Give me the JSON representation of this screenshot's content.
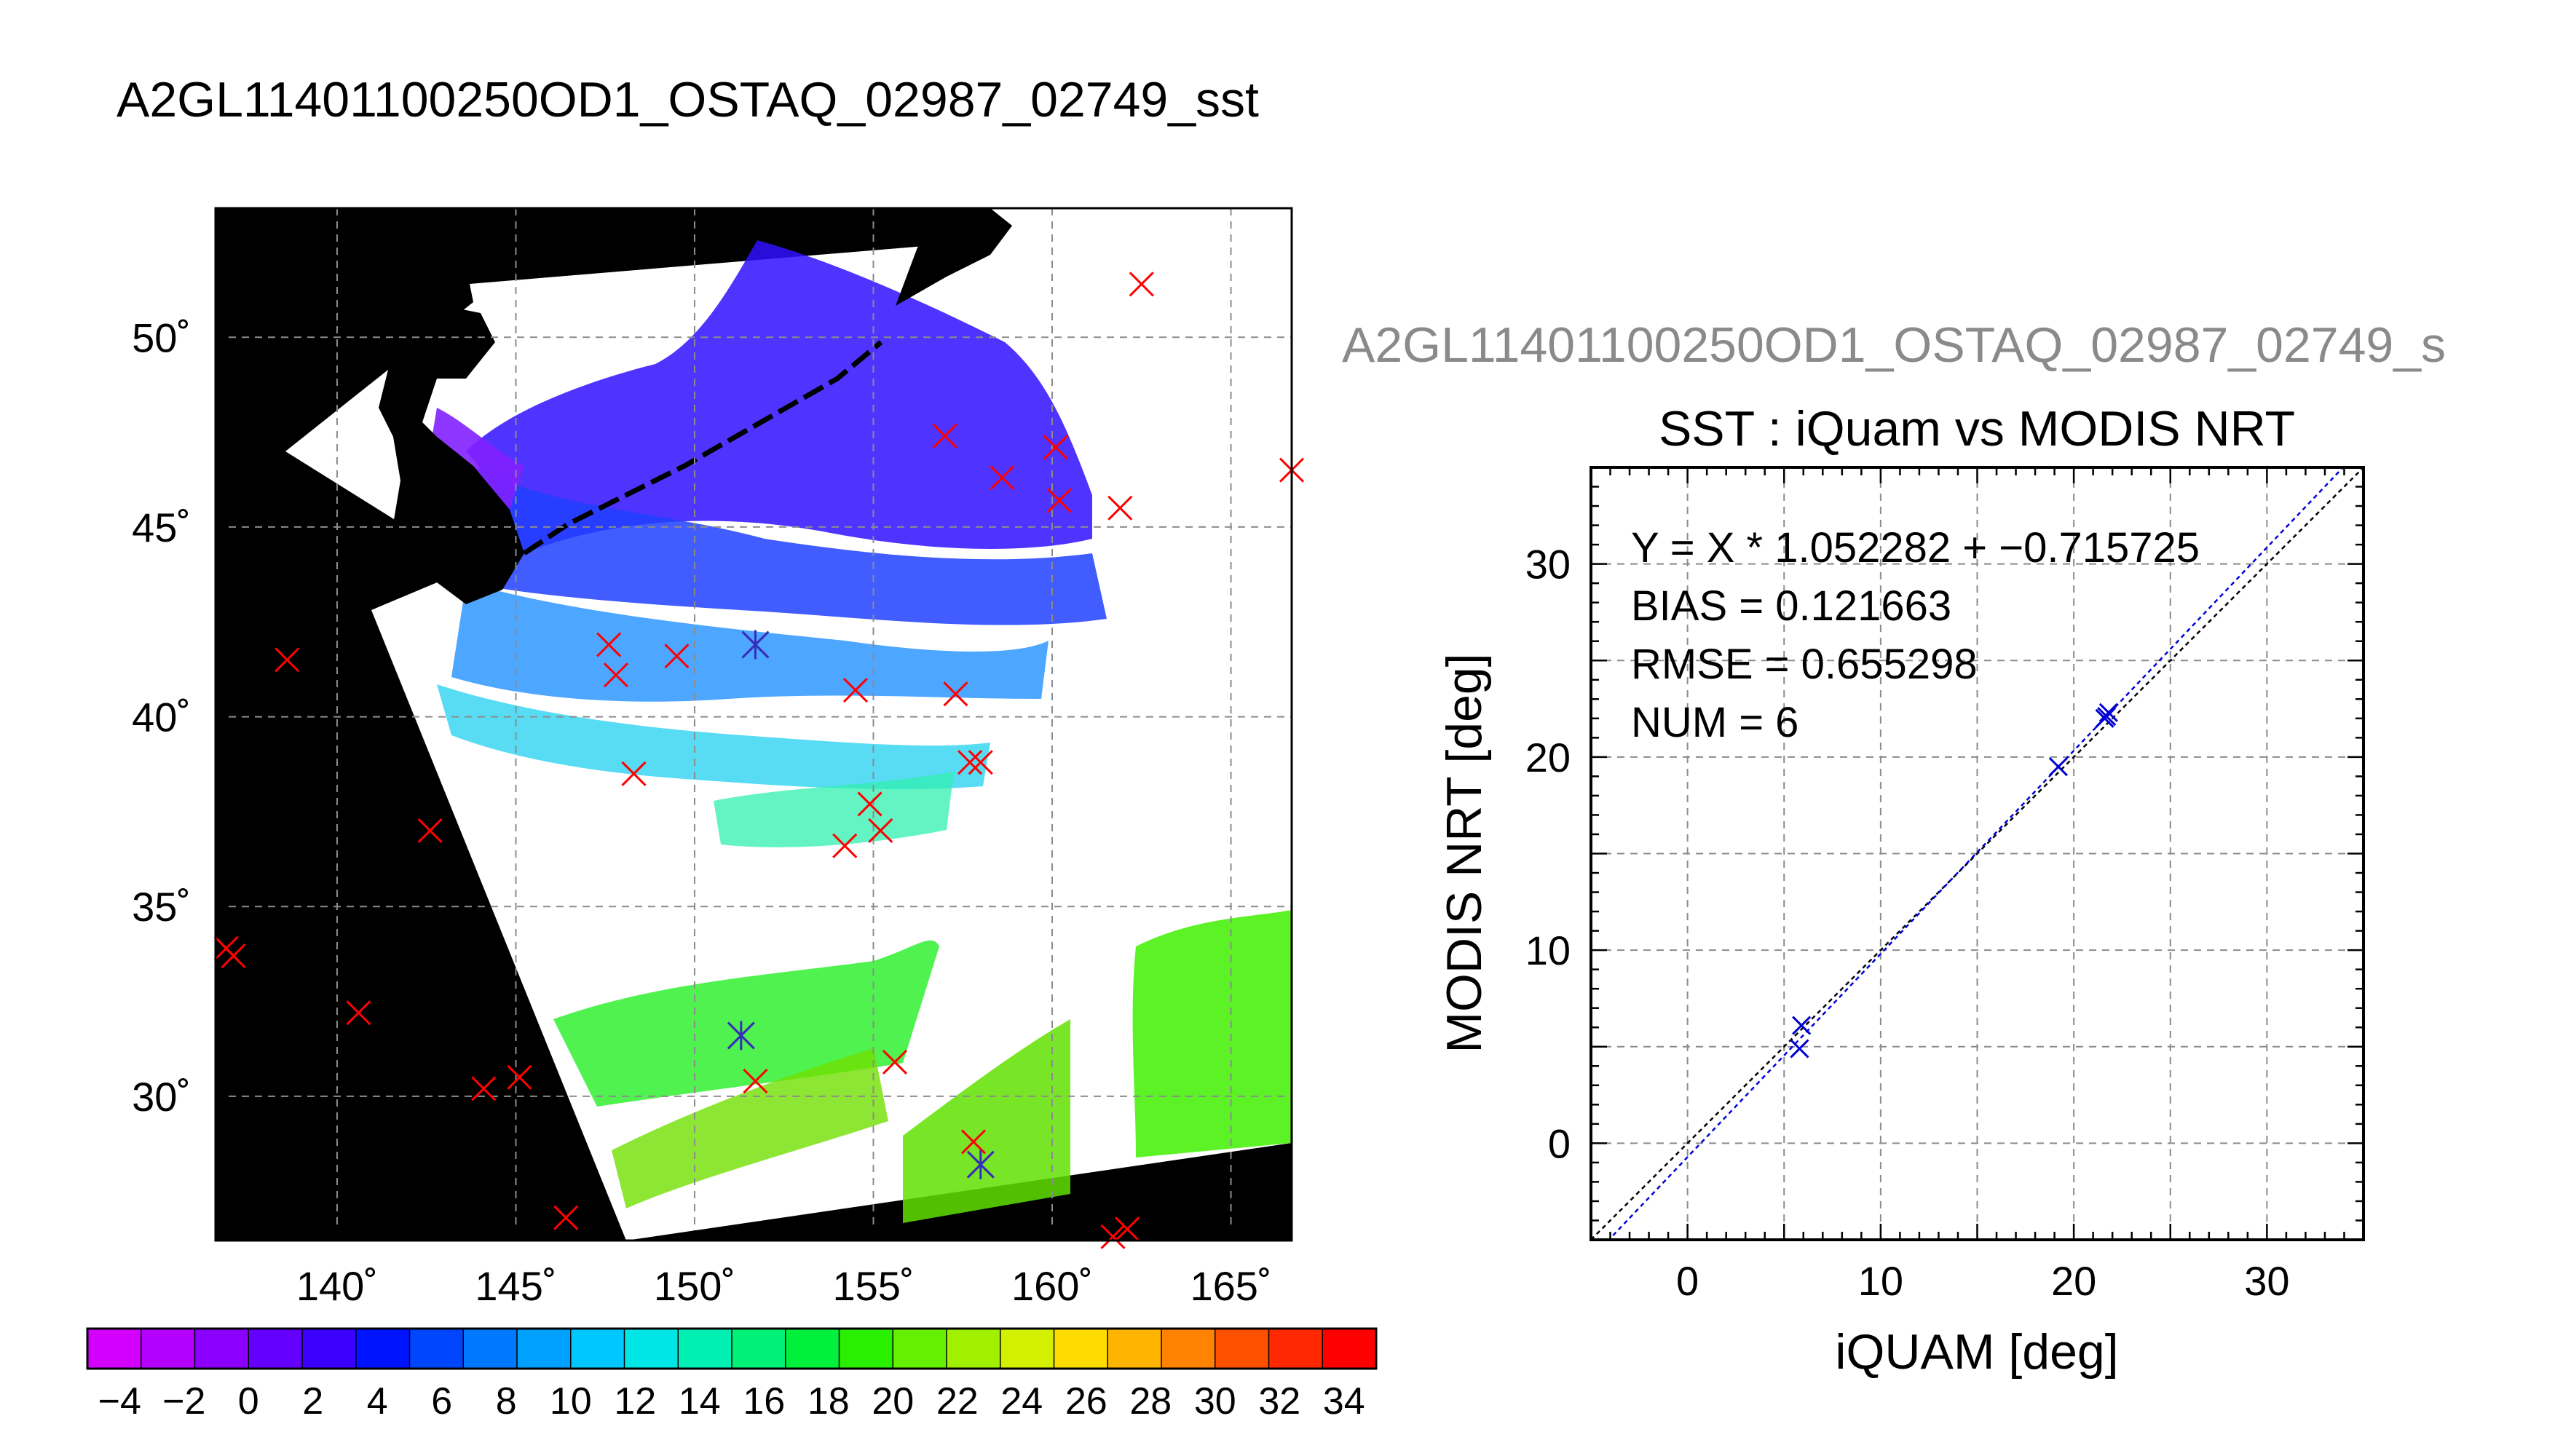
{
  "header": {
    "title": "A2GL11401100250OD1_OSTAQ_02987_02749_sst",
    "subtitle": "A2GL11401100250OD1_OSTAQ_02987_02749_s"
  },
  "chart_data": [
    {
      "type": "map",
      "lon_ticks": [
        140,
        145,
        150,
        155,
        160,
        165
      ],
      "lat_ticks": [
        30,
        35,
        40,
        45,
        50
      ],
      "lon_tick_labels": [
        "140˚",
        "145˚",
        "150˚",
        "155˚",
        "160˚",
        "165˚"
      ],
      "lat_tick_labels": [
        "30˚",
        "35˚",
        "40˚",
        "45˚",
        "50˚"
      ],
      "xlim": [
        136.6,
        166.7
      ],
      "ylim": [
        26.2,
        53.4
      ],
      "grid": true,
      "markers": [
        {
          "lon": 162.5,
          "lat": 51.4
        },
        {
          "lon": 166.7,
          "lat": 46.5
        },
        {
          "lon": 157.0,
          "lat": 47.4
        },
        {
          "lon": 160.1,
          "lat": 47.1
        },
        {
          "lon": 158.6,
          "lat": 46.3
        },
        {
          "lon": 160.2,
          "lat": 45.7
        },
        {
          "lon": 161.9,
          "lat": 45.5
        },
        {
          "lon": 138.6,
          "lat": 41.5
        },
        {
          "lon": 147.6,
          "lat": 41.9
        },
        {
          "lon": 147.8,
          "lat": 41.1
        },
        {
          "lon": 149.5,
          "lat": 41.6
        },
        {
          "lon": 151.7,
          "lat": 41.9
        },
        {
          "lon": 154.5,
          "lat": 40.7
        },
        {
          "lon": 157.3,
          "lat": 40.6
        },
        {
          "lon": 148.3,
          "lat": 38.5
        },
        {
          "lon": 157.7,
          "lat": 38.8
        },
        {
          "lon": 158.0,
          "lat": 38.8
        },
        {
          "lon": 154.9,
          "lat": 37.7
        },
        {
          "lon": 155.2,
          "lat": 37.0
        },
        {
          "lon": 154.2,
          "lat": 36.6
        },
        {
          "lon": 142.6,
          "lat": 37.0
        },
        {
          "lon": 136.9,
          "lat": 33.9
        },
        {
          "lon": 137.1,
          "lat": 33.7
        },
        {
          "lon": 140.6,
          "lat": 32.2
        },
        {
          "lon": 151.3,
          "lat": 31.6
        },
        {
          "lon": 151.7,
          "lat": 30.4
        },
        {
          "lon": 155.6,
          "lat": 30.9
        },
        {
          "lon": 144.1,
          "lat": 30.2
        },
        {
          "lon": 145.1,
          "lat": 30.5
        },
        {
          "lon": 157.8,
          "lat": 28.8
        },
        {
          "lon": 158.0,
          "lat": 28.2
        },
        {
          "lon": 146.4,
          "lat": 26.8
        },
        {
          "lon": 161.7,
          "lat": 26.3
        },
        {
          "lon": 162.1,
          "lat": 26.5
        }
      ],
      "matched_markers": [
        {
          "lon": 151.3,
          "lat": 31.6
        },
        {
          "lon": 158.0,
          "lat": 28.2
        },
        {
          "lon": 151.7,
          "lat": 41.9
        }
      ]
    },
    {
      "type": "colorbar",
      "min": -5,
      "max": 35,
      "step": 2,
      "tick_labels": [
        "−4",
        "−2",
        "0",
        "2",
        "4",
        "6",
        "8",
        "10",
        "12",
        "14",
        "16",
        "18",
        "20",
        "22",
        "24",
        "26",
        "28",
        "30",
        "32",
        "34"
      ],
      "colors": [
        "#d400ff",
        "#b300ff",
        "#8c00ff",
        "#6400ff",
        "#3c00ff",
        "#0014ff",
        "#0046ff",
        "#0078ff",
        "#00a0ff",
        "#00c8ff",
        "#00e6e6",
        "#00f0b4",
        "#00f078",
        "#00f03c",
        "#28f000",
        "#64f000",
        "#a0f000",
        "#d2f000",
        "#ffdc00",
        "#ffb400",
        "#ff8200",
        "#ff5000",
        "#ff2800",
        "#ff0000"
      ]
    },
    {
      "type": "scatter",
      "title": "SST : iQuam vs MODIS NRT",
      "xlabel": "iQUAM [deg]",
      "ylabel": "MODIS NRT [deg]",
      "xlim": [
        -5,
        35
      ],
      "ylim": [
        -5,
        35
      ],
      "xticks": [
        0,
        10,
        20,
        30
      ],
      "yticks": [
        0,
        10,
        20,
        30
      ],
      "grid": true,
      "annotations": [
        "Y = X * 1.052282 + −0.715725",
        "BIAS = 0.121663",
        "RMSE = 0.655298",
        "NUM = 6"
      ],
      "fit": {
        "slope": 1.052282,
        "intercept": -0.715725
      },
      "points": [
        {
          "x": 5.9,
          "y": 6.1
        },
        {
          "x": 5.8,
          "y": 4.9
        },
        {
          "x": 19.2,
          "y": 19.5
        },
        {
          "x": 21.7,
          "y": 22.1
        },
        {
          "x": 21.8,
          "y": 22.3
        },
        {
          "x": 21.6,
          "y": 22.0
        }
      ]
    }
  ]
}
